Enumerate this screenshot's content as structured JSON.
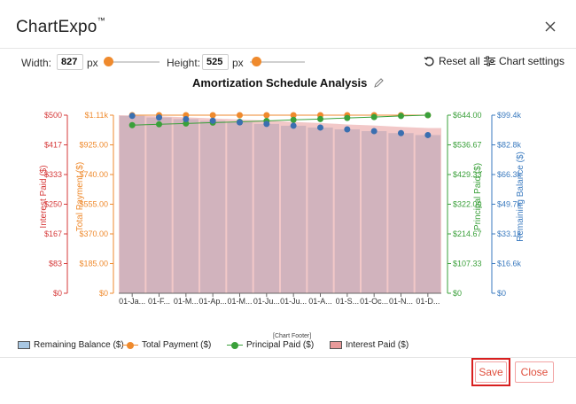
{
  "app": {
    "title": "ChartExpo",
    "trademark": "™"
  },
  "controls": {
    "width_label": "Width:",
    "width_value": "827",
    "width_unit": "px",
    "height_label": "Height:",
    "height_value": "525",
    "height_unit": "px",
    "reset_label": "Reset all",
    "settings_label": "Chart settings"
  },
  "chart_data": {
    "type": "bar",
    "title": "Amortization Schedule Analysis",
    "categories": [
      "01-Ja...",
      "01-F...",
      "01-M...",
      "01-Ap...",
      "01-M...",
      "01-Ju...",
      "01-Ju...",
      "01-A...",
      "01-S...",
      "01-Oc...",
      "01-N...",
      "01-D..."
    ],
    "axes": [
      {
        "title": "Interest Paid ($)",
        "color": "#d63a3a",
        "ticks": [
          "$0",
          "$83",
          "$167",
          "$250",
          "$333",
          "$417",
          "$500"
        ]
      },
      {
        "title": "Total Payment ($)",
        "color": "#ef8a2d",
        "ticks": [
          "$0",
          "$185.00",
          "$370.00",
          "$555.00",
          "$740.00",
          "$925.00",
          "$1.11k"
        ]
      },
      {
        "title": "Principal Paid ($)",
        "color": "#3aa03a",
        "ticks": [
          "$0",
          "$107.33",
          "$214.67",
          "$322.00",
          "$429.33",
          "$536.67",
          "$644.00"
        ]
      },
      {
        "title": "Remaining Balance ($)",
        "color": "#3a7abf",
        "ticks": [
          "$0",
          "$16.6k",
          "$33.1k",
          "$49.7k",
          "$66.3k",
          "$82.8k",
          "$99.4k"
        ]
      }
    ],
    "series": [
      {
        "name": "Remaining Balance ($)",
        "type": "bar",
        "color": "#a9c8e3",
        "axis": 3,
        "ylim": [
          0,
          99400
        ],
        "values": [
          99000,
          98100,
          97200,
          96300,
          95400,
          94500,
          93500,
          92500,
          91500,
          90500,
          89400,
          88300
        ]
      },
      {
        "name": "Total Payment ($)",
        "type": "line",
        "color": "#ef8a2d",
        "axis": 1,
        "ylim": [
          0,
          1110
        ],
        "values": [
          1110,
          1110,
          1110,
          1110,
          1110,
          1110,
          1110,
          1110,
          1110,
          1110,
          1110,
          1110
        ]
      },
      {
        "name": "Principal Paid ($)",
        "type": "line",
        "color": "#3aa03a",
        "axis": 2,
        "ylim": [
          0,
          644
        ],
        "values": [
          608,
          611,
          614,
          617,
          620,
          623,
          627,
          630,
          634,
          637,
          641,
          644
        ]
      },
      {
        "name": "Interest Paid ($)",
        "type": "area",
        "color": "#e89a9a",
        "axis": 0,
        "ylim": [
          0,
          500
        ],
        "values": [
          500,
          497,
          494,
          491,
          488,
          485,
          481,
          478,
          474,
          471,
          467,
          464
        ]
      }
    ],
    "legend_position": "bottom-left",
    "grid": false
  },
  "footer": {
    "chart_footer": "[Chart Footer]",
    "save_label": "Save",
    "close_label": "Close"
  }
}
